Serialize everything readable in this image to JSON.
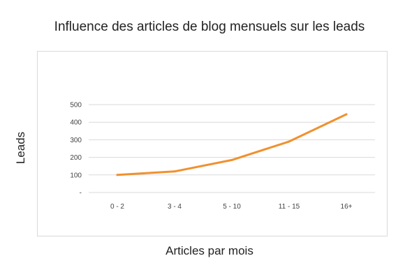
{
  "chart_data": {
    "type": "line",
    "title": "Influence des articles de blog mensuels sur les leads",
    "xlabel": "Articles par mois",
    "ylabel": "Leads",
    "categories": [
      "0 - 2",
      "3 - 4",
      "5 - 10",
      "11 - 15",
      "16+"
    ],
    "series": [
      {
        "values": [
          100,
          120,
          185,
          290,
          445
        ],
        "color": "#f0912f"
      }
    ],
    "yticks": [
      {
        "value": 0,
        "label": "-"
      },
      {
        "value": 100,
        "label": "100"
      },
      {
        "value": 200,
        "label": "200"
      },
      {
        "value": 300,
        "label": "300"
      },
      {
        "value": 400,
        "label": "400"
      },
      {
        "value": 500,
        "label": "500"
      }
    ],
    "ylim": [
      0,
      500
    ],
    "grid": true,
    "legend": "none"
  }
}
